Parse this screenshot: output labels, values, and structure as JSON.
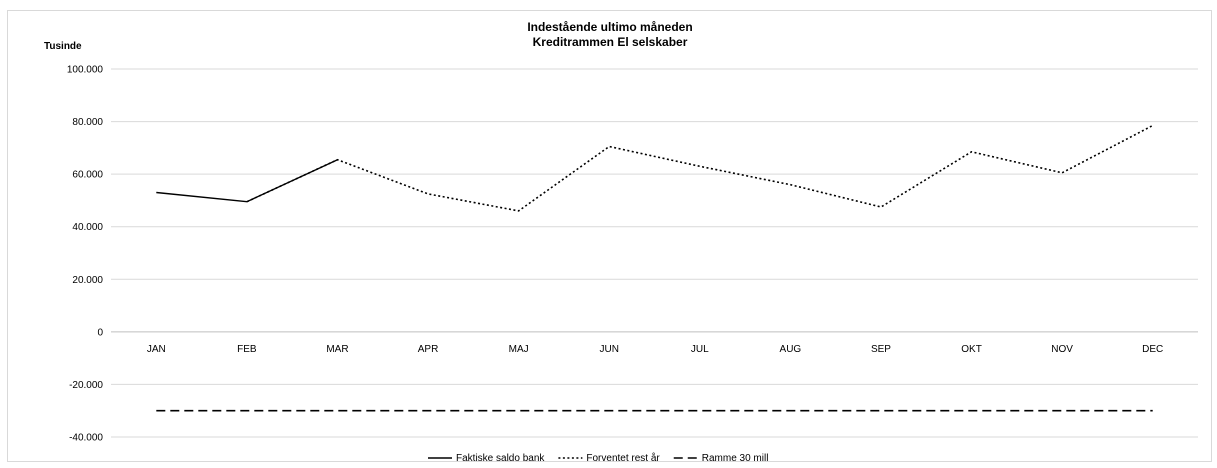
{
  "chart_data": {
    "type": "line",
    "title": "Indestående ultimo måneden",
    "subtitle": "Kreditrammen El selskaber",
    "ylabel": "Tusinde",
    "xlabel": "",
    "categories": [
      "JAN",
      "FEB",
      "MAR",
      "APR",
      "MAJ",
      "JUN",
      "JUL",
      "AUG",
      "SEP",
      "OKT",
      "NOV",
      "DEC"
    ],
    "ylim": [
      -40000,
      100000
    ],
    "yticks": [
      100000,
      80000,
      60000,
      40000,
      20000,
      0,
      -20000,
      -40000
    ],
    "ytick_labels": [
      "100.000",
      "80.000",
      "60.000",
      "40.000",
      "20.000",
      "0",
      "-20.000",
      "-40.000"
    ],
    "grid": true,
    "legend_position": "bottom",
    "series": [
      {
        "name": "Faktiske saldo bank",
        "style": "solid",
        "values": [
          53000,
          49500,
          65500,
          null,
          null,
          null,
          null,
          null,
          null,
          null,
          null,
          null
        ]
      },
      {
        "name": "Forventet rest år",
        "style": "dotted",
        "values": [
          null,
          49500,
          65500,
          52500,
          46000,
          70500,
          63000,
          56000,
          47500,
          68500,
          60500,
          78500
        ]
      },
      {
        "name": "Ramme 30 mill",
        "style": "dashed",
        "values": [
          -30000,
          -30000,
          -30000,
          -30000,
          -30000,
          -30000,
          -30000,
          -30000,
          -30000,
          -30000,
          -30000,
          -30000
        ]
      }
    ],
    "colors": {
      "series": "#000000",
      "grid": "#d9d9d9",
      "axis": "#bfbfbf"
    }
  }
}
